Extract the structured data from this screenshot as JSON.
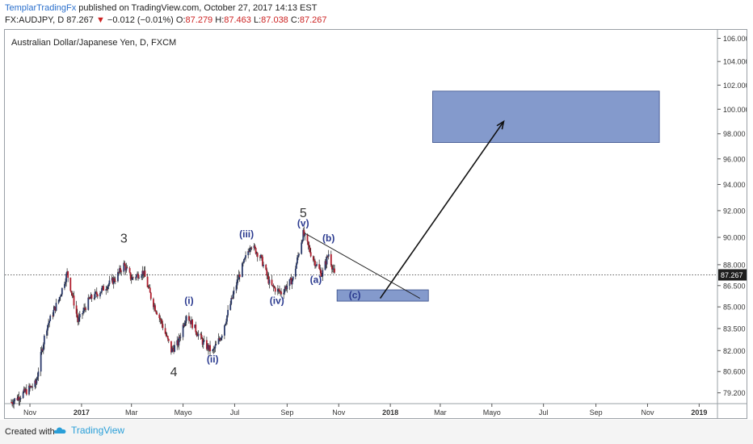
{
  "header": {
    "author": "TemplarTradingFx",
    "published_text": "published on TradingView.com, October 27, 2017 14:13 EST",
    "symbol": "FX:AUDJPY, D",
    "last": "87.267",
    "change_arrow": "▼",
    "change": "−0.012 (−0.01%)",
    "o_label": "O:",
    "o": "87.279",
    "h_label": "H:",
    "h": "87.463",
    "l_label": "L:",
    "l": "87.038",
    "c_label": "C:",
    "c": "87.267"
  },
  "footer": {
    "created_with": "Created with",
    "brand": "TradingView"
  },
  "chart_data": {
    "type": "candlestick",
    "title": "Australian Dollar/Japanese Yen, D, FXCM",
    "last_price_label": "87.267",
    "last_price": 87.267,
    "y_ticks": [
      "106.000",
      "104.000",
      "102.000",
      "100.000",
      "98.000",
      "96.000",
      "94.000",
      "92.000",
      "90.000",
      "88.000",
      "86.500",
      "85.000",
      "83.500",
      "82.000",
      "80.600",
      "79.200"
    ],
    "y_tick_values": [
      106,
      104,
      102,
      100,
      98,
      96,
      94,
      92,
      90,
      88,
      86.5,
      85,
      83.5,
      82,
      80.6,
      79.2
    ],
    "x_ticks": [
      "Nov",
      "2017",
      "Mar",
      "Mayo",
      "Jul",
      "Sep",
      "Nov",
      "2018",
      "Mar",
      "Mayo",
      "Jul",
      "Sep",
      "Nov",
      "2019"
    ],
    "x_tick_dates": [
      "2016-11",
      "2017-01",
      "2017-03",
      "2017-05",
      "2017-07",
      "2017-09",
      "2017-11",
      "2018-01",
      "2018-03",
      "2018-05",
      "2018-07",
      "2018-09",
      "2018-11",
      "2019-01"
    ],
    "y_scale": "log",
    "ylim": [
      78.5,
      106.6
    ],
    "xlim": [
      "2016-10-10",
      "2019-01-15"
    ],
    "grid": false,
    "price_path": [
      [
        "2016-10-10",
        78.6
      ],
      [
        "2016-10-25",
        79.2
      ],
      [
        "2016-11-08",
        79.8
      ],
      [
        "2016-11-20",
        83.5
      ],
      [
        "2016-12-05",
        85.5
      ],
      [
        "2016-12-15",
        87.4
      ],
      [
        "2016-12-28",
        84.0
      ],
      [
        "2017-01-10",
        85.5
      ],
      [
        "2017-01-25",
        86.2
      ],
      [
        "2017-02-10",
        87.0
      ],
      [
        "2017-02-20",
        88.0
      ],
      [
        "2017-03-01",
        87.0
      ],
      [
        "2017-03-15",
        87.5
      ],
      [
        "2017-03-25",
        85.5
      ],
      [
        "2017-04-05",
        84.0
      ],
      [
        "2017-04-17",
        82.0
      ],
      [
        "2017-04-25",
        82.5
      ],
      [
        "2017-05-05",
        84.5
      ],
      [
        "2017-05-15",
        83.5
      ],
      [
        "2017-05-25",
        82.5
      ],
      [
        "2017-06-05",
        81.9
      ],
      [
        "2017-06-15",
        83.0
      ],
      [
        "2017-06-25",
        85.0
      ],
      [
        "2017-07-05",
        87.0
      ],
      [
        "2017-07-20",
        89.5
      ],
      [
        "2017-08-01",
        88.5
      ],
      [
        "2017-08-12",
        86.5
      ],
      [
        "2017-08-25",
        86.0
      ],
      [
        "2017-09-08",
        87.0
      ],
      [
        "2017-09-20",
        90.3
      ],
      [
        "2017-10-01",
        88.5
      ],
      [
        "2017-10-12",
        87.3
      ],
      [
        "2017-10-20",
        88.8
      ],
      [
        "2017-10-27",
        87.267
      ]
    ],
    "wave_labels": [
      {
        "text": "3",
        "date": "2017-02-20",
        "price": 89.6,
        "style": "major"
      },
      {
        "text": "4",
        "date": "2017-04-20",
        "price": 80.3,
        "style": "major"
      },
      {
        "text": "5",
        "date": "2017-09-20",
        "price": 91.5,
        "style": "major"
      },
      {
        "text": "(i)",
        "date": "2017-05-08",
        "price": 85.2,
        "style": "minor"
      },
      {
        "text": "(ii)",
        "date": "2017-06-05",
        "price": 81.2,
        "style": "minor"
      },
      {
        "text": "(iii)",
        "date": "2017-07-15",
        "price": 90.0,
        "style": "minor"
      },
      {
        "text": "(iv)",
        "date": "2017-08-20",
        "price": 85.2,
        "style": "minor"
      },
      {
        "text": "(v)",
        "date": "2017-09-20",
        "price": 90.8,
        "style": "minor"
      },
      {
        "text": "(a)",
        "date": "2017-10-05",
        "price": 86.7,
        "style": "minor"
      },
      {
        "text": "(b)",
        "date": "2017-10-20",
        "price": 89.7,
        "style": "minor"
      },
      {
        "text": "(c)",
        "date": "2017-11-20",
        "price": 85.6,
        "style": "minor"
      }
    ],
    "zones": [
      {
        "name": "c-zone",
        "x0": "2017-10-30",
        "x1": "2018-02-15",
        "y0": 85.4,
        "y1": 86.2
      },
      {
        "name": "target-zone",
        "x0": "2018-02-20",
        "x1": "2018-11-15",
        "y0": 97.3,
        "y1": 101.5
      }
    ],
    "trendline": {
      "x0": "2017-09-22",
      "y0": 90.3,
      "x1": "2018-02-05",
      "y1": 85.6
    },
    "arrow": {
      "x0": "2017-12-20",
      "y0": 85.6,
      "x1": "2018-05-15",
      "y1": 99.0
    }
  }
}
